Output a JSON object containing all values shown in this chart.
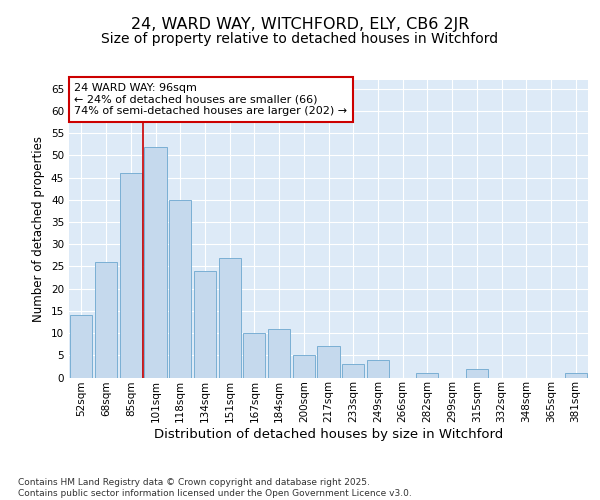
{
  "title1": "24, WARD WAY, WITCHFORD, ELY, CB6 2JR",
  "title2": "Size of property relative to detached houses in Witchford",
  "xlabel": "Distribution of detached houses by size in Witchford",
  "ylabel": "Number of detached properties",
  "categories": [
    "52sqm",
    "68sqm",
    "85sqm",
    "101sqm",
    "118sqm",
    "134sqm",
    "151sqm",
    "167sqm",
    "184sqm",
    "200sqm",
    "217sqm",
    "233sqm",
    "249sqm",
    "266sqm",
    "282sqm",
    "299sqm",
    "315sqm",
    "332sqm",
    "348sqm",
    "365sqm",
    "381sqm"
  ],
  "values": [
    14,
    26,
    46,
    52,
    40,
    24,
    27,
    10,
    11,
    5,
    7,
    3,
    4,
    0,
    1,
    0,
    2,
    0,
    0,
    0,
    1
  ],
  "bar_color": "#c5d9ed",
  "bar_edge_color": "#7aafd4",
  "bar_edge_width": 0.7,
  "red_line_x": 2.5,
  "annotation_text": "24 WARD WAY: 96sqm\n← 24% of detached houses are smaller (66)\n74% of semi-detached houses are larger (202) →",
  "annotation_box_color": "#ffffff",
  "annotation_box_edge": "#cc0000",
  "ylim": [
    0,
    67
  ],
  "yticks": [
    0,
    5,
    10,
    15,
    20,
    25,
    30,
    35,
    40,
    45,
    50,
    55,
    60,
    65
  ],
  "fig_bg_color": "#ffffff",
  "plot_bg_color": "#ddeaf7",
  "footer": "Contains HM Land Registry data © Crown copyright and database right 2025.\nContains public sector information licensed under the Open Government Licence v3.0.",
  "title1_fontsize": 11.5,
  "title2_fontsize": 10,
  "xlabel_fontsize": 9.5,
  "ylabel_fontsize": 8.5,
  "tick_fontsize": 7.5,
  "annotation_fontsize": 8,
  "footer_fontsize": 6.5
}
